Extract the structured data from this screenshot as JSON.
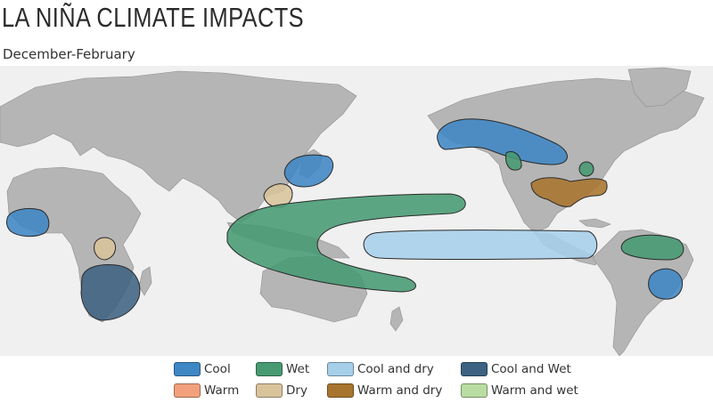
{
  "header": {
    "title": "LA NIÑA CLIMATE IMPACTS",
    "subtitle": "December-February"
  },
  "legend": {
    "items": [
      {
        "key": "cool",
        "label": "Cool",
        "color": "#3f86c4"
      },
      {
        "key": "wet",
        "label": "Wet",
        "color": "#479a72"
      },
      {
        "key": "cool_dry",
        "label": "Cool and dry",
        "color": "#a6cfea"
      },
      {
        "key": "cool_wet",
        "label": "Cool and Wet",
        "color": "#3d6282"
      },
      {
        "key": "warm",
        "label": "Warm",
        "color": "#f2a17c"
      },
      {
        "key": "dry",
        "label": "Dry",
        "color": "#d8c39b"
      },
      {
        "key": "warm_dry",
        "label": "Warm and dry",
        "color": "#a8752e"
      },
      {
        "key": "warm_wet",
        "label": "Warm and wet",
        "color": "#b9dca2"
      }
    ]
  },
  "map": {
    "land_color": "#b5b5b5",
    "ocean_color": "#f0f0f0",
    "regions": [
      {
        "name": "pacific-northwest-canada",
        "impact": "cool"
      },
      {
        "name": "ohio-valley",
        "impact": "wet"
      },
      {
        "name": "northern-california",
        "impact": "wet"
      },
      {
        "name": "southern-united-states",
        "impact": "warm_dry"
      },
      {
        "name": "japan",
        "impact": "cool"
      },
      {
        "name": "southeast-china",
        "impact": "dry"
      },
      {
        "name": "maritime-continent-australia",
        "impact": "wet"
      },
      {
        "name": "central-equatorial-pacific",
        "impact": "cool_dry"
      },
      {
        "name": "northern-south-america",
        "impact": "wet"
      },
      {
        "name": "southeast-brazil",
        "impact": "cool"
      },
      {
        "name": "west-africa",
        "impact": "cool"
      },
      {
        "name": "east-africa",
        "impact": "dry"
      },
      {
        "name": "southern-africa",
        "impact": "cool_wet"
      }
    ]
  }
}
